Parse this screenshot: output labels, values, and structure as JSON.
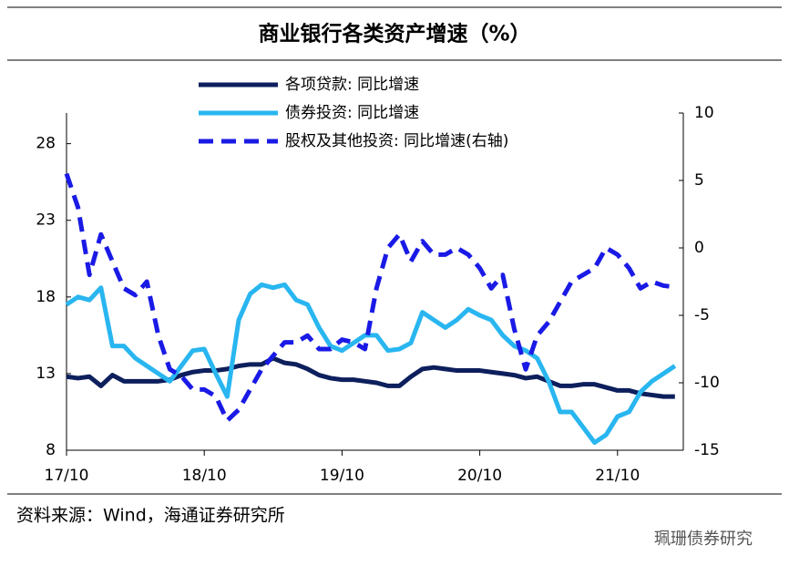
{
  "chart_data": {
    "type": "line",
    "title": "商业银行各类资产增速（%）",
    "source": "资料来源：Wind，海通证券研究所",
    "watermark": "珮珊债券研究",
    "categories": [
      "17/10",
      null,
      null,
      null,
      null,
      null,
      null,
      null,
      null,
      null,
      null,
      null,
      "18/10",
      null,
      null,
      null,
      null,
      null,
      null,
      null,
      null,
      null,
      null,
      null,
      "19/10",
      null,
      null,
      null,
      null,
      null,
      null,
      null,
      null,
      null,
      null,
      null,
      "20/10",
      null,
      null,
      null,
      null,
      null,
      null,
      null,
      null,
      null,
      null,
      null,
      "21/10",
      null,
      null,
      null,
      null,
      null
    ],
    "series": [
      {
        "name": "各项贷款: 同比增速",
        "color": "#0d1f5c",
        "dash": false,
        "values": [
          12.8,
          12.7,
          12.8,
          12.2,
          12.9,
          12.5,
          12.5,
          12.5,
          12.5,
          12.6,
          12.9,
          13.1,
          13.2,
          13.2,
          13.3,
          13.5,
          13.6,
          13.6,
          14.0,
          13.7,
          13.6,
          13.3,
          12.9,
          12.7,
          12.6,
          12.6,
          12.5,
          12.4,
          12.2,
          12.2,
          12.8,
          13.3,
          13.4,
          13.3,
          13.2,
          13.2,
          13.2,
          13.1,
          13.0,
          12.9,
          12.7,
          12.8,
          12.5,
          12.2,
          12.2,
          12.3,
          12.3,
          12.1,
          11.9,
          11.9,
          11.7,
          11.6,
          11.5,
          11.5
        ]
      },
      {
        "name": "债券投资: 同比增速",
        "color": "#29b6f0",
        "dash": false,
        "values": [
          17.5,
          18.0,
          17.8,
          18.6,
          14.8,
          14.8,
          14.0,
          13.5,
          13.0,
          12.5,
          13.5,
          14.5,
          14.6,
          13.0,
          11.5,
          16.5,
          18.2,
          18.8,
          18.6,
          18.8,
          17.8,
          17.5,
          16.0,
          14.8,
          14.5,
          15.0,
          15.5,
          15.5,
          14.5,
          14.6,
          15.0,
          17.0,
          16.5,
          16.0,
          16.5,
          17.2,
          16.8,
          16.5,
          15.5,
          14.8,
          14.5,
          14.0,
          12.5,
          10.5,
          10.5,
          9.5,
          8.5,
          9.0,
          10.2,
          10.5,
          11.8,
          12.5,
          13.0,
          13.5
        ]
      },
      {
        "name": "股权及其他投资: 同比增速(右轴)",
        "color": "#1a1ae6",
        "dash": true,
        "axis": "y2",
        "values": [
          5.5,
          3.0,
          -2.0,
          1.0,
          -1.0,
          -3.0,
          -3.5,
          -2.5,
          -6.5,
          -9.0,
          -9.5,
          -10.5,
          -10.5,
          -11.0,
          -12.8,
          -12.0,
          -10.5,
          -9.0,
          -8.0,
          -7.0,
          -7.0,
          -6.5,
          -7.5,
          -7.5,
          -6.8,
          -7.0,
          -7.5,
          -3.0,
          0.0,
          1.0,
          -1.0,
          0.5,
          -0.5,
          -0.5,
          0.0,
          -0.5,
          -1.5,
          -3.0,
          -2.0,
          -6.0,
          -9.0,
          -6.5,
          -5.5,
          -4.0,
          -2.5,
          -2.0,
          -1.5,
          0.0,
          -0.5,
          -1.5,
          -3.0,
          -2.5,
          -2.8,
          -2.9
        ]
      }
    ],
    "ylim": [
      8,
      30
    ],
    "yticks": [
      8,
      13,
      18,
      23,
      28
    ],
    "y2lim": [
      -15,
      10
    ],
    "y2ticks": [
      -15,
      -10,
      -5,
      0,
      5,
      10
    ],
    "legend": "top"
  }
}
